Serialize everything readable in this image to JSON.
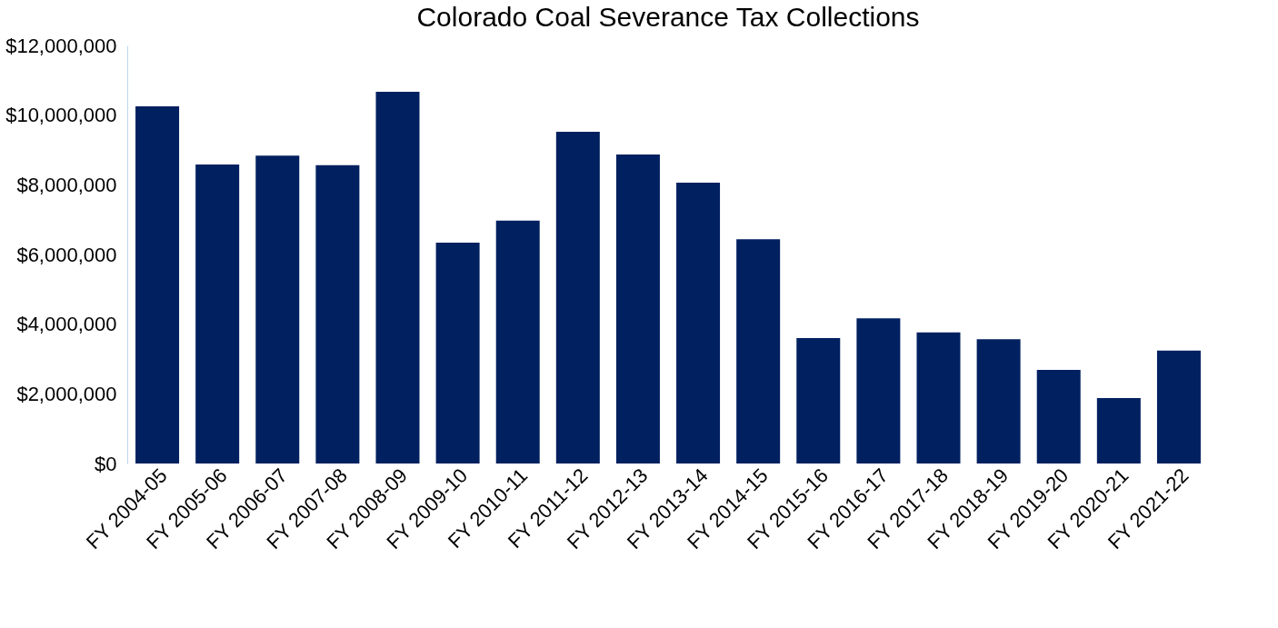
{
  "chart_data": {
    "type": "bar",
    "title": "Colorado Coal Severance Tax Collections",
    "categories": [
      "FY 2004-05",
      "FY 2005-06",
      "FY 2006-07",
      "FY 2007-08",
      "FY 2008-09",
      "FY 2009-10",
      "FY 2010-11",
      "FY 2011-12",
      "FY 2012-13",
      "FY 2013-14",
      "FY 2014-15",
      "FY 2015-16",
      "FY 2016-17",
      "FY 2017-18",
      "FY 2018-19",
      "FY 2019-20",
      "FY 2020-21",
      "FY 2021-22"
    ],
    "values": [
      10250000,
      8580000,
      8840000,
      8560000,
      10670000,
      6340000,
      6970000,
      9520000,
      8870000,
      8060000,
      6440000,
      3600000,
      4170000,
      3760000,
      3570000,
      2690000,
      1880000,
      3240000
    ],
    "color": "#002060",
    "ylim": [
      0,
      12000000
    ],
    "yticks": [
      {
        "value": 0,
        "label": "$0"
      },
      {
        "value": 2000000,
        "label": "$2,000,000"
      },
      {
        "value": 4000000,
        "label": "$4,000,000"
      },
      {
        "value": 6000000,
        "label": "$6,000,000"
      },
      {
        "value": 8000000,
        "label": "$8,000,000"
      },
      {
        "value": 10000000,
        "label": "$10,000,000"
      },
      {
        "value": 12000000,
        "label": "$12,000,000"
      }
    ],
    "grid": false
  }
}
